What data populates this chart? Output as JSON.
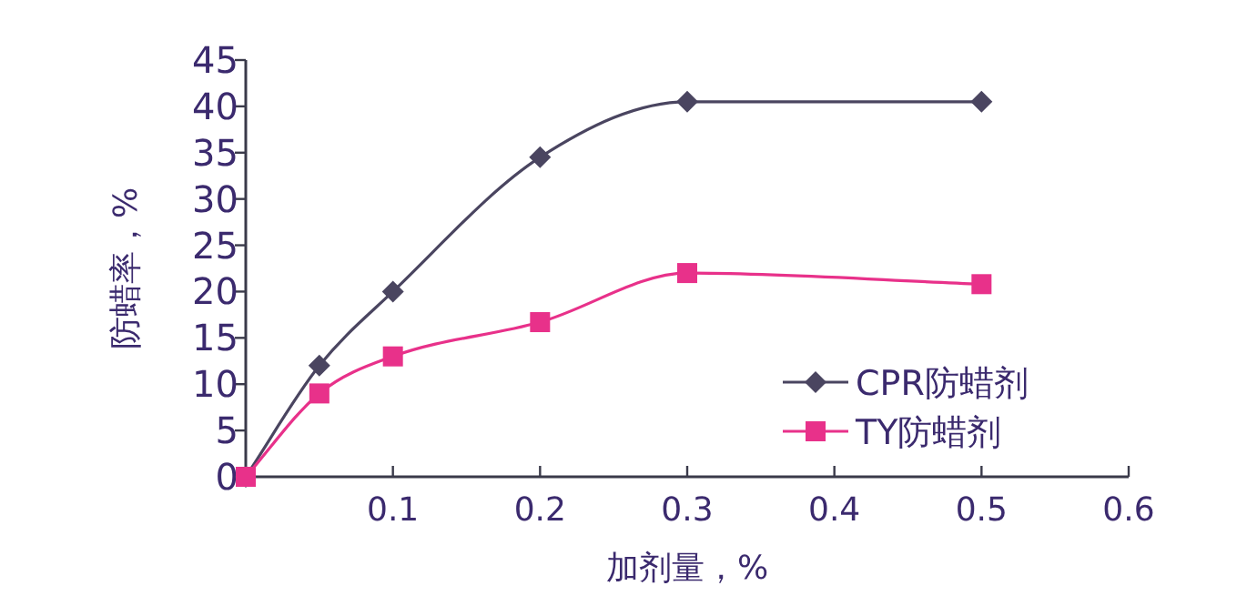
{
  "chart_data": {
    "type": "line",
    "xlabel": "加剂量，%",
    "ylabel": "防蜡率，%",
    "x": [
      0,
      0.05,
      0.1,
      0.2,
      0.3,
      0.5
    ],
    "series": [
      {
        "name": "CPR防蜡剂",
        "color": "#4a4560",
        "marker": "diamond",
        "values": [
          0,
          12,
          20,
          34.5,
          40.5,
          40.5
        ]
      },
      {
        "name": "TY防蜡剂",
        "color": "#e8318a",
        "marker": "square",
        "values": [
          0,
          9,
          13,
          16.7,
          22,
          20.8
        ]
      }
    ],
    "xlim": [
      0,
      0.6
    ],
    "xticks": [
      0.1,
      0.2,
      0.3,
      0.4,
      0.5,
      0.6
    ],
    "ylim": [
      0,
      45
    ],
    "yticks": [
      0,
      5,
      10,
      15,
      20,
      25,
      30,
      35,
      40,
      45
    ],
    "legend": "bottom right",
    "line_style": "solid"
  }
}
